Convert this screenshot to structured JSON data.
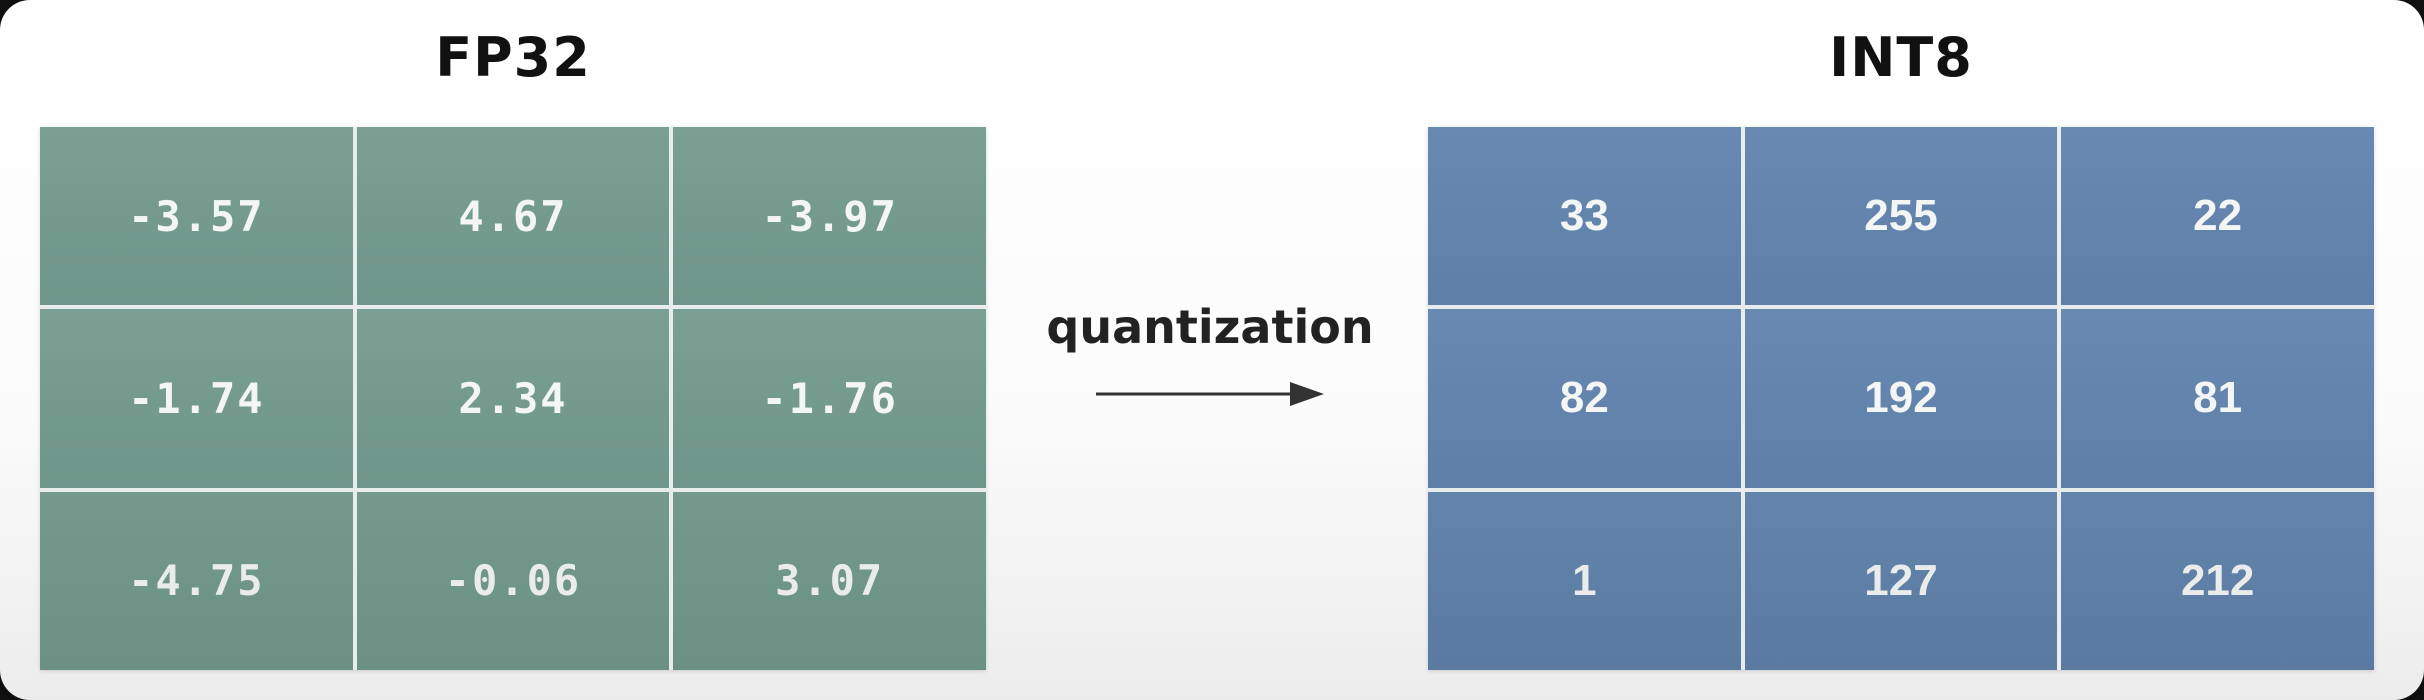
{
  "left_panel": {
    "title": "FP32",
    "rows": [
      [
        "-3.57",
        "4.67",
        "-3.97"
      ],
      [
        "-1.74",
        "2.34",
        "-1.76"
      ],
      [
        "-4.75",
        "-0.06",
        "3.07"
      ]
    ]
  },
  "right_panel": {
    "title": "INT8",
    "rows": [
      [
        "33",
        "255",
        "22"
      ],
      [
        "82",
        "192",
        "81"
      ],
      [
        "1",
        "127",
        "212"
      ]
    ]
  },
  "transform": {
    "label": "quantization",
    "arrow_icon": "arrow-right-icon"
  },
  "colors": {
    "fp32_cell": "#74998d",
    "int8_cell": "#6384ad",
    "cell_text": "#f3f6f5",
    "title_text": "#111111",
    "arrow": "#333333"
  }
}
